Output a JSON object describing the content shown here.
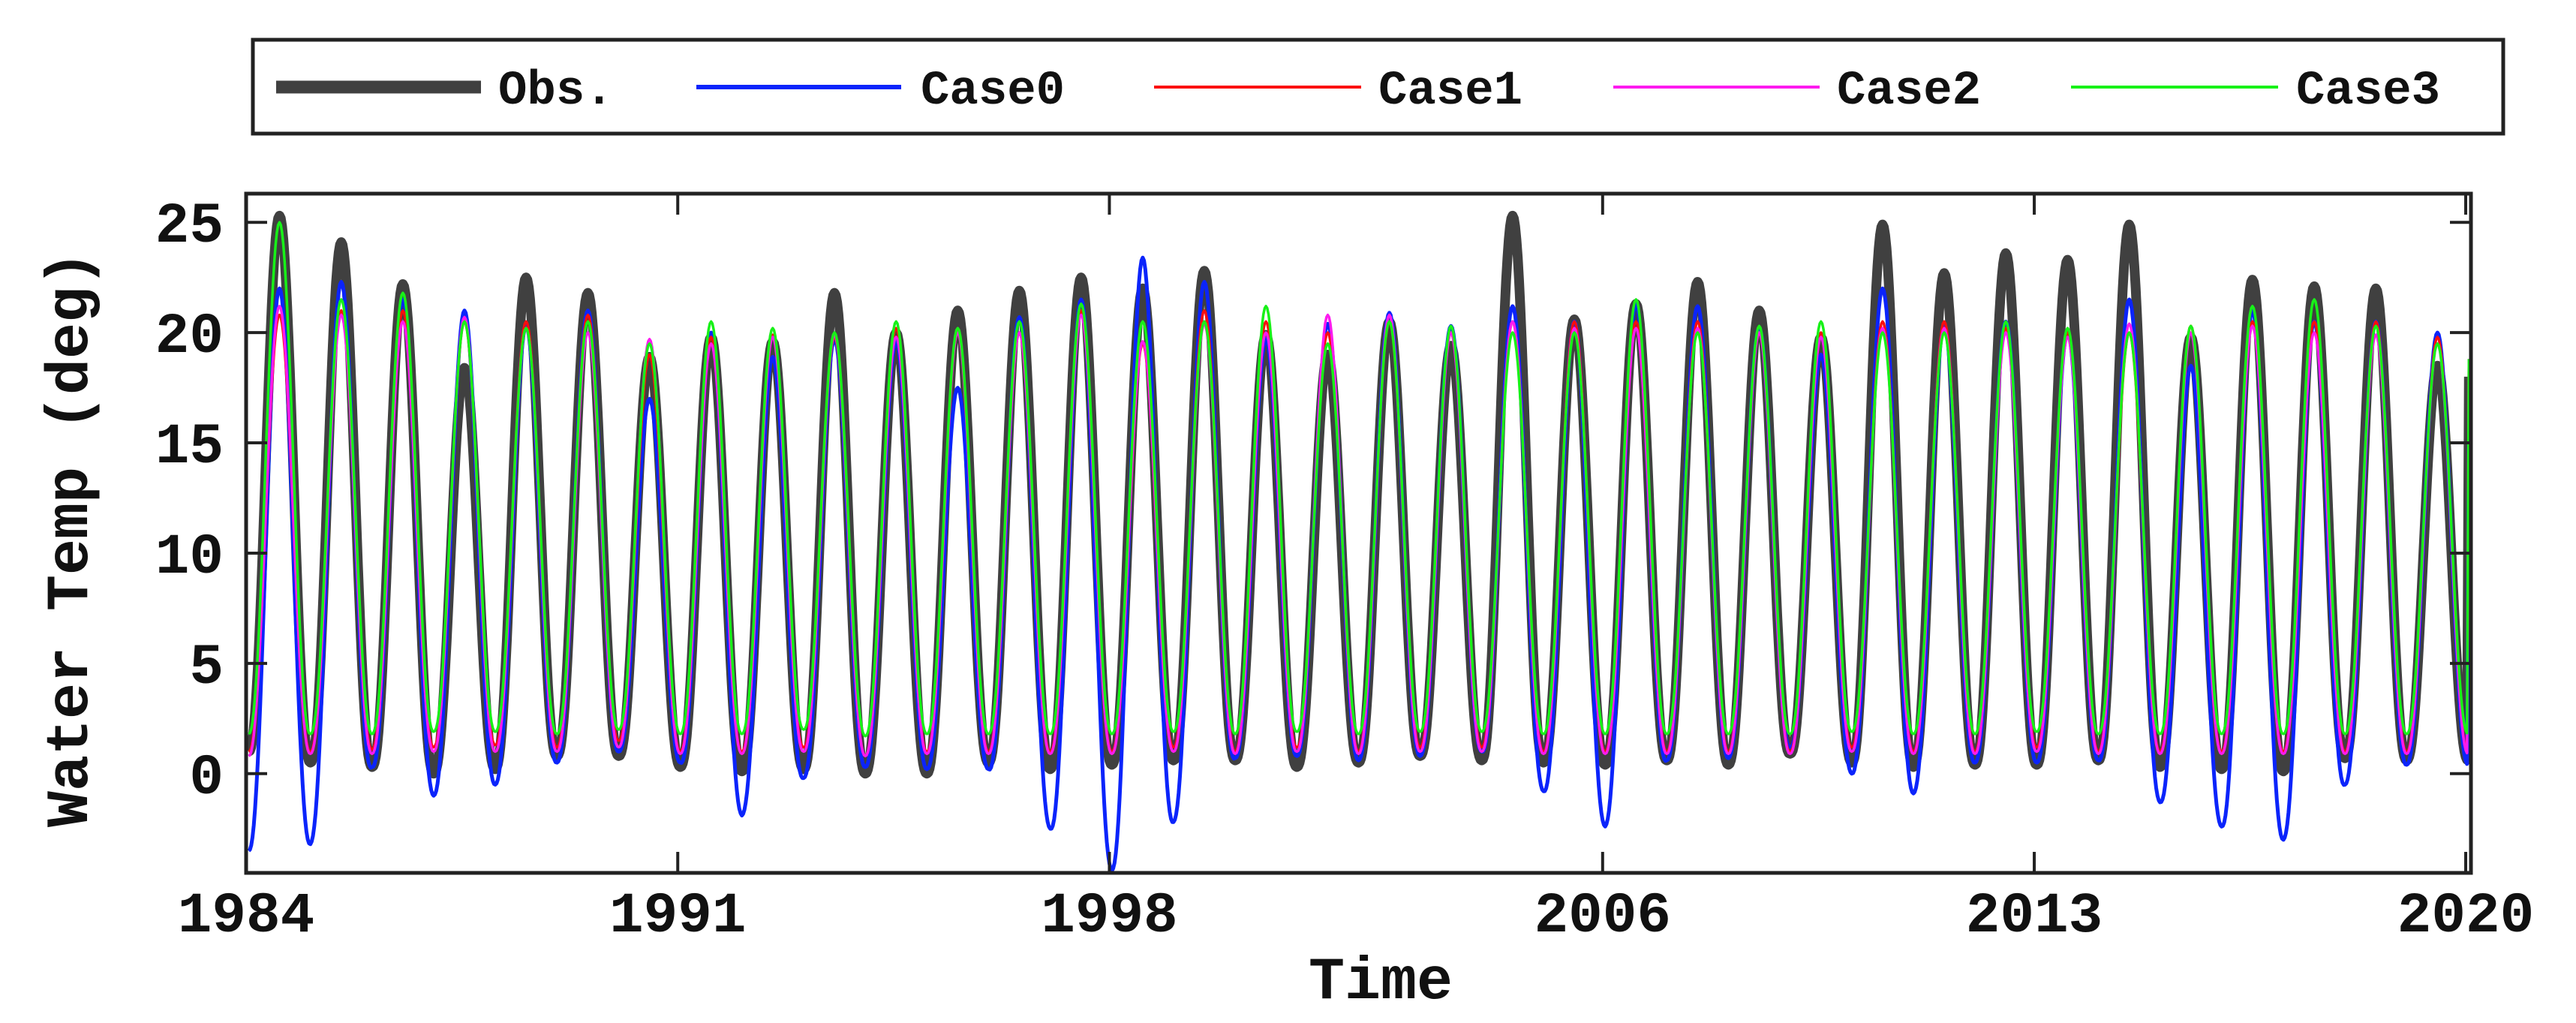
{
  "chart_data": {
    "type": "line",
    "title": "",
    "xlabel": "Time",
    "ylabel": "Water Temp (deg)",
    "xlim": [
      "1984-01-01",
      "2020-02-01"
    ],
    "ylim": [
      -4.5,
      26.3
    ],
    "x_ticks": [
      "1984",
      "1991",
      "1998",
      "2006",
      "2013",
      "2020"
    ],
    "y_ticks": [
      "0",
      "5",
      "10",
      "15",
      "20",
      "25"
    ],
    "grid": false,
    "legend": {
      "position": "top",
      "orientation": "horizontal",
      "entries": [
        "Obs.",
        "Case0",
        "Case1",
        "Case2",
        "Case3"
      ]
    },
    "x": [
      "1984",
      "1985",
      "1986",
      "1987",
      "1988",
      "1989",
      "1990",
      "1991",
      "1992",
      "1993",
      "1994",
      "1995",
      "1996",
      "1997",
      "1998",
      "1999",
      "2000",
      "2001",
      "2002",
      "2003",
      "2004",
      "2005",
      "2006",
      "2007",
      "2008",
      "2009",
      "2010",
      "2011",
      "2012",
      "2013",
      "2014",
      "2015",
      "2016",
      "2017",
      "2018",
      "2019"
    ],
    "series_note_fields": [
      "summer_peak",
      "winter_low"
    ],
    "series": [
      {
        "name": "Obs.",
        "color": "#404040",
        "summer_peak": [
          25.3,
          24.1,
          22.2,
          18.4,
          22.5,
          21.8,
          18.9,
          19.8,
          19.6,
          21.8,
          20.0,
          21.0,
          21.9,
          22.5,
          22.0,
          22.8,
          19.9,
          19.0,
          20.5,
          19.4,
          25.3,
          20.6,
          21.3,
          22.3,
          21.0,
          19.8,
          24.9,
          22.7,
          23.6,
          23.3,
          24.9,
          19.8,
          22.4,
          22.1,
          22.0,
          18.5
        ],
        "winter_low": [
          1.0,
          0.5,
          0.3,
          0.0,
          0.2,
          0.8,
          0.8,
          0.3,
          0.1,
          0.2,
          0.0,
          0.0,
          0.5,
          0.2,
          0.4,
          0.6,
          0.6,
          0.3,
          0.5,
          0.8,
          0.6,
          0.5,
          0.4,
          0.6,
          0.4,
          0.9,
          0.5,
          0.3,
          0.4,
          0.4,
          0.6,
          0.3,
          0.2,
          0.1,
          0.7,
          0.6
        ]
      },
      {
        "name": "Case0",
        "color": "#0b24fb",
        "summer_peak": [
          22.0,
          22.3,
          21.5,
          21.0,
          20.3,
          21.0,
          17.0,
          20.0,
          18.9,
          19.7,
          19.6,
          17.5,
          20.7,
          21.5,
          23.4,
          22.3,
          19.7,
          20.4,
          20.9,
          20.3,
          21.2,
          20.5,
          21.3,
          21.2,
          20.2,
          19.0,
          22.0,
          20.3,
          20.5,
          20.0,
          21.5,
          18.5,
          21.0,
          20.5,
          20.5,
          20.0
        ],
        "winter_low": [
          -3.5,
          -3.2,
          0.3,
          -1.0,
          -0.5,
          0.5,
          1.0,
          0.5,
          -1.9,
          -0.2,
          0.3,
          0.2,
          0.2,
          -2.5,
          -4.4,
          -2.2,
          0.7,
          0.8,
          0.6,
          0.8,
          1.0,
          -0.8,
          -2.4,
          0.6,
          0.7,
          1.2,
          0.0,
          -0.9,
          0.5,
          0.5,
          0.6,
          -1.3,
          -2.4,
          -3.0,
          -0.5,
          0.4
        ]
      },
      {
        "name": "Case1",
        "color": "#fb0d0d",
        "summer_peak": [
          20.8,
          21.0,
          21.0,
          20.5,
          20.5,
          20.8,
          19.0,
          19.8,
          19.9,
          19.8,
          20.2,
          20.0,
          20.0,
          21.0,
          19.5,
          21.0,
          20.5,
          20.0,
          20.5,
          20.0,
          20.5,
          20.5,
          20.5,
          20.5,
          20.0,
          20.0,
          20.5,
          20.5,
          20.2,
          20.0,
          20.0,
          20.3,
          20.5,
          20.5,
          20.5,
          19.8
        ],
        "winter_low": [
          1.0,
          1.0,
          1.1,
          1.2,
          1.3,
          1.2,
          1.5,
          1.0,
          1.0,
          1.2,
          0.8,
          1.0,
          1.0,
          1.0,
          1.0,
          1.2,
          1.0,
          1.2,
          1.0,
          1.2,
          1.2,
          1.0,
          1.0,
          1.0,
          1.0,
          1.0,
          1.2,
          1.0,
          1.0,
          1.2,
          1.0,
          1.0,
          1.0,
          1.0,
          1.0,
          1.0
        ]
      },
      {
        "name": "Case2",
        "color": "#fd1bef",
        "summer_peak": [
          21.2,
          20.8,
          20.5,
          20.7,
          20.2,
          20.0,
          19.7,
          19.5,
          19.8,
          19.9,
          19.8,
          20.0,
          20.0,
          20.8,
          19.6,
          20.4,
          20.0,
          20.8,
          20.8,
          20.0,
          20.5,
          20.2,
          20.2,
          20.2,
          20.0,
          19.8,
          20.2,
          20.2,
          20.0,
          19.8,
          20.4,
          20.0,
          20.3,
          20.0,
          19.9,
          19.5
        ],
        "winter_low": [
          0.8,
          0.9,
          0.9,
          1.0,
          1.0,
          1.0,
          1.2,
          0.9,
          0.9,
          1.0,
          0.8,
          0.9,
          0.9,
          0.9,
          0.9,
          1.0,
          0.9,
          1.0,
          0.9,
          1.0,
          1.0,
          0.9,
          0.9,
          0.9,
          0.9,
          0.9,
          1.0,
          0.9,
          0.9,
          1.0,
          0.9,
          0.9,
          0.9,
          0.9,
          0.9,
          0.9
        ]
      },
      {
        "name": "Case3",
        "color": "#18f118",
        "summer_peak": [
          25.0,
          21.5,
          21.8,
          20.5,
          20.2,
          20.5,
          19.5,
          20.5,
          20.2,
          20.0,
          20.5,
          20.2,
          20.5,
          21.3,
          20.5,
          20.5,
          21.2,
          19.5,
          20.5,
          20.3,
          20.0,
          20.0,
          21.5,
          20.0,
          20.3,
          20.5,
          20.0,
          20.0,
          20.5,
          20.2,
          20.0,
          20.3,
          21.2,
          21.5,
          20.3,
          19.5
        ],
        "winter_low": [
          1.8,
          1.8,
          1.8,
          1.9,
          1.9,
          1.8,
          2.0,
          1.8,
          1.8,
          2.0,
          1.7,
          1.8,
          1.8,
          1.8,
          1.8,
          1.9,
          1.8,
          1.9,
          1.8,
          1.9,
          1.9,
          1.8,
          1.8,
          1.8,
          1.8,
          1.8,
          1.9,
          1.8,
          1.8,
          1.9,
          1.8,
          1.8,
          1.8,
          1.8,
          1.8,
          1.8
        ]
      }
    ]
  }
}
